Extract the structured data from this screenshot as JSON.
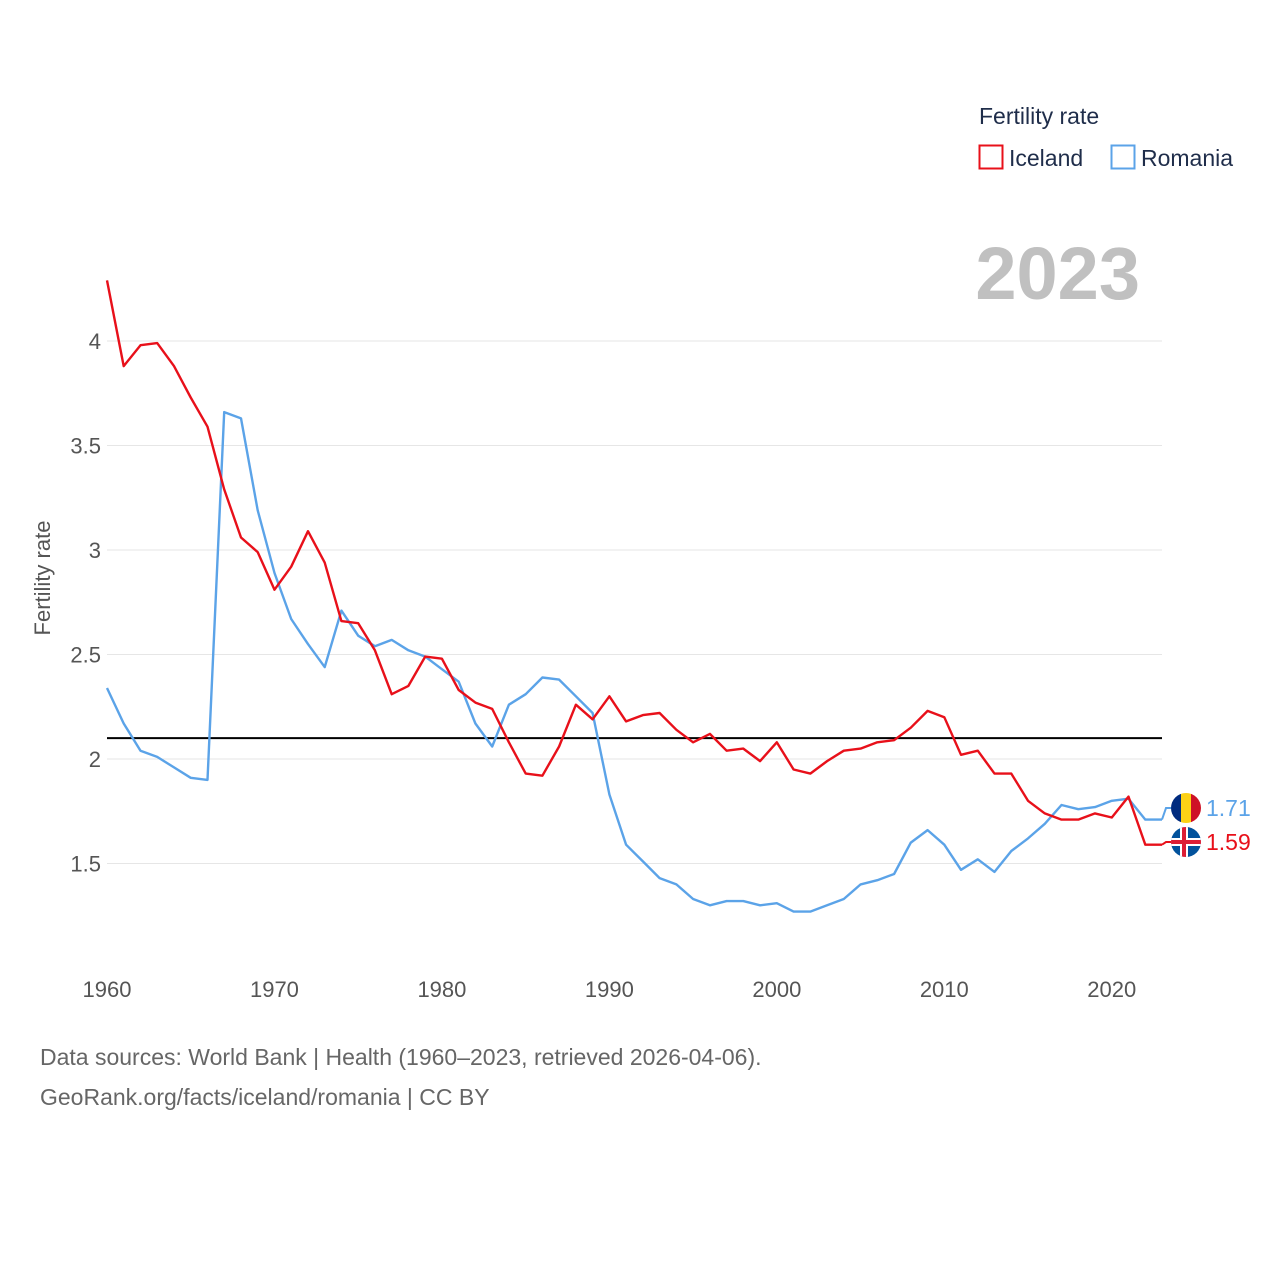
{
  "chart_data": {
    "type": "line",
    "ylabel": "Fertility rate",
    "xlabel": "",
    "xlim": [
      1960,
      2023
    ],
    "ylim": [
      1.0,
      4.45
    ],
    "xticks": [
      1960,
      1970,
      1980,
      1990,
      2000,
      2010,
      2020
    ],
    "yticks": [
      1.5,
      2,
      2.5,
      3,
      3.5,
      4
    ],
    "xtick_labels": [
      "1960",
      "1970",
      "1980",
      "1990",
      "2000",
      "2010",
      "2020"
    ],
    "ytick_labels": [
      "1.5",
      "2",
      "2.5",
      "3",
      "3.5",
      "4"
    ],
    "reference_line": 2.1,
    "current_year": "2023",
    "legend": {
      "title": "Fertility rate",
      "position": "top-right"
    },
    "series": [
      {
        "name": "Iceland",
        "color": "#e8101a",
        "end_label": "1.59",
        "flag": "iceland-flag",
        "values": [
          4.29,
          3.88,
          3.98,
          3.99,
          3.88,
          3.73,
          3.59,
          3.29,
          3.06,
          2.99,
          2.81,
          2.92,
          3.09,
          2.94,
          2.66,
          2.65,
          2.52,
          2.31,
          2.35,
          2.49,
          2.48,
          2.33,
          2.27,
          2.24,
          2.08,
          1.93,
          1.92,
          2.06,
          2.26,
          2.19,
          2.3,
          2.18,
          2.21,
          2.22,
          2.14,
          2.08,
          2.12,
          2.04,
          2.05,
          1.99,
          2.08,
          1.95,
          1.93,
          1.99,
          2.04,
          2.05,
          2.08,
          2.09,
          2.15,
          2.23,
          2.2,
          2.02,
          2.04,
          1.93,
          1.93,
          1.8,
          1.74,
          1.71,
          1.71,
          1.74,
          1.72,
          1.82,
          1.59,
          1.59
        ]
      },
      {
        "name": "Romania",
        "color": "#5ba3e8",
        "end_label": "1.71",
        "flag": "romania-flag",
        "values": [
          2.34,
          2.17,
          2.04,
          2.01,
          1.96,
          1.91,
          1.9,
          3.66,
          3.63,
          3.19,
          2.89,
          2.67,
          2.55,
          2.44,
          2.71,
          2.59,
          2.54,
          2.57,
          2.52,
          2.49,
          2.43,
          2.37,
          2.17,
          2.06,
          2.26,
          2.31,
          2.39,
          2.38,
          2.3,
          2.22,
          1.83,
          1.59,
          1.51,
          1.43,
          1.4,
          1.33,
          1.3,
          1.32,
          1.32,
          1.3,
          1.31,
          1.27,
          1.27,
          1.3,
          1.33,
          1.4,
          1.42,
          1.45,
          1.6,
          1.66,
          1.59,
          1.47,
          1.52,
          1.46,
          1.56,
          1.62,
          1.69,
          1.78,
          1.76,
          1.77,
          1.8,
          1.81,
          1.71,
          1.71
        ]
      }
    ]
  },
  "footer": {
    "line1": "Data sources: World Bank | Health (1960–2023, retrieved 2026-04-06).",
    "line2": "GeoRank.org/facts/iceland/romania | CC BY"
  }
}
